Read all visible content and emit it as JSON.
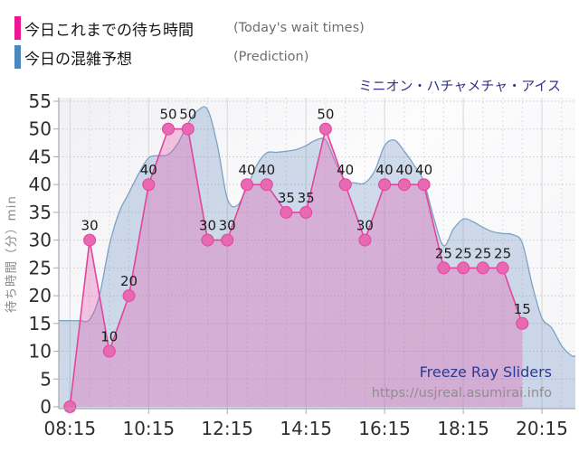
{
  "legend": {
    "items": [
      {
        "label_jp": "今日これまでの待ち時間",
        "label_en": "(Today's wait times)",
        "color": "#ED1793"
      },
      {
        "label_jp": "今日の混雑予想",
        "label_en": "(Prediction)",
        "color": "#4C87BE"
      }
    ]
  },
  "title": "ミニオン・ハチャメチャ・アイス",
  "watermark": {
    "brand": "Freeze Ray Sliders",
    "url": "https://usjreal.asumirai.info"
  },
  "chart_data": {
    "type": "area",
    "title": "ミニオン・ハチャメチャ・アイス",
    "ylabel": "待ち時間（分）min",
    "ylim": [
      0,
      55
    ],
    "y_ticks": [
      0,
      5,
      10,
      15,
      20,
      25,
      30,
      35,
      40,
      45,
      50,
      55
    ],
    "x_tick_labels": [
      "08:15",
      "10:15",
      "12:15",
      "14:15",
      "16:15",
      "18:15",
      "20:15"
    ],
    "x_domain": [
      "07:58",
      "21:06"
    ],
    "grid": "dotted horizontal every 5 min-units, dashed vertical every 30 minutes, solid vertical every 2 hours",
    "legend_position": "top-left",
    "colors": {
      "grid": "#c9c9cd",
      "axis": "#a9a9ad",
      "tick_text": "#2e2e2e",
      "point_label_text": "#1b1b1b",
      "title_text": "#32328A",
      "watermark_brand": "#2B3A94",
      "watermark_url": "#8f8f8f"
    },
    "series": [
      {
        "name": "今日これまでの待ち時間 (Today's wait times)",
        "kind": "line-area-points",
        "color": "#E2449E",
        "fill": "rgba(231,84,170,0.32)",
        "point_fill": "#E868B2",
        "x": [
          "08:15",
          "08:45",
          "09:15",
          "09:45",
          "10:15",
          "10:45",
          "11:15",
          "11:45",
          "12:15",
          "12:45",
          "13:15",
          "13:45",
          "14:15",
          "14:45",
          "15:15",
          "15:45",
          "16:15",
          "16:45",
          "17:15",
          "17:45",
          "18:15",
          "18:45",
          "19:15",
          "19:45"
        ],
        "values": [
          0,
          30,
          10,
          20,
          40,
          50,
          50,
          30,
          30,
          40,
          40,
          35,
          35,
          50,
          40,
          30,
          40,
          40,
          40,
          25,
          25,
          25,
          25,
          15
        ],
        "point_labels": [
          null,
          "30",
          "10",
          "20",
          "40",
          "50",
          "50",
          "30",
          "30",
          "40",
          "40",
          "35",
          "35",
          "50",
          "40",
          "30",
          "40",
          "40",
          "40",
          "25",
          "25",
          "25",
          "25",
          "15"
        ]
      },
      {
        "name": "今日の混雑予想 (Prediction)",
        "kind": "smooth-area",
        "color": "#7BA2C6",
        "fill": "rgba(104,144,192,0.30)",
        "x": [
          "08:00",
          "08:15",
          "08:30",
          "08:45",
          "09:00",
          "09:15",
          "09:30",
          "09:45",
          "10:00",
          "10:15",
          "10:30",
          "10:45",
          "11:00",
          "11:15",
          "11:30",
          "11:45",
          "12:00",
          "12:15",
          "12:30",
          "12:45",
          "13:00",
          "13:15",
          "13:30",
          "13:45",
          "14:00",
          "14:15",
          "14:30",
          "14:45",
          "15:00",
          "15:15",
          "15:30",
          "15:45",
          "16:00",
          "16:15",
          "16:30",
          "16:45",
          "17:00",
          "17:15",
          "17:30",
          "17:45",
          "18:00",
          "18:15",
          "18:30",
          "18:45",
          "19:00",
          "19:15",
          "19:30",
          "19:45",
          "20:00",
          "20:15",
          "20:30",
          "20:45",
          "21:00"
        ],
        "values": [
          15.5,
          15.5,
          15.5,
          15.7,
          20,
          29,
          35,
          38.5,
          42,
          44.8,
          45.2,
          45.4,
          47.5,
          51,
          53.3,
          53.5,
          47,
          37.5,
          36.2,
          39.5,
          43.5,
          45.7,
          45.8,
          46,
          46.3,
          47,
          48,
          48,
          44,
          40.8,
          40.3,
          40.3,
          42.5,
          47,
          48,
          46,
          43.5,
          40.5,
          34,
          29,
          32,
          33.8,
          33.3,
          32.3,
          31.5,
          31.2,
          31,
          29.5,
          22,
          16,
          14.2,
          11,
          9.2
        ]
      }
    ]
  }
}
